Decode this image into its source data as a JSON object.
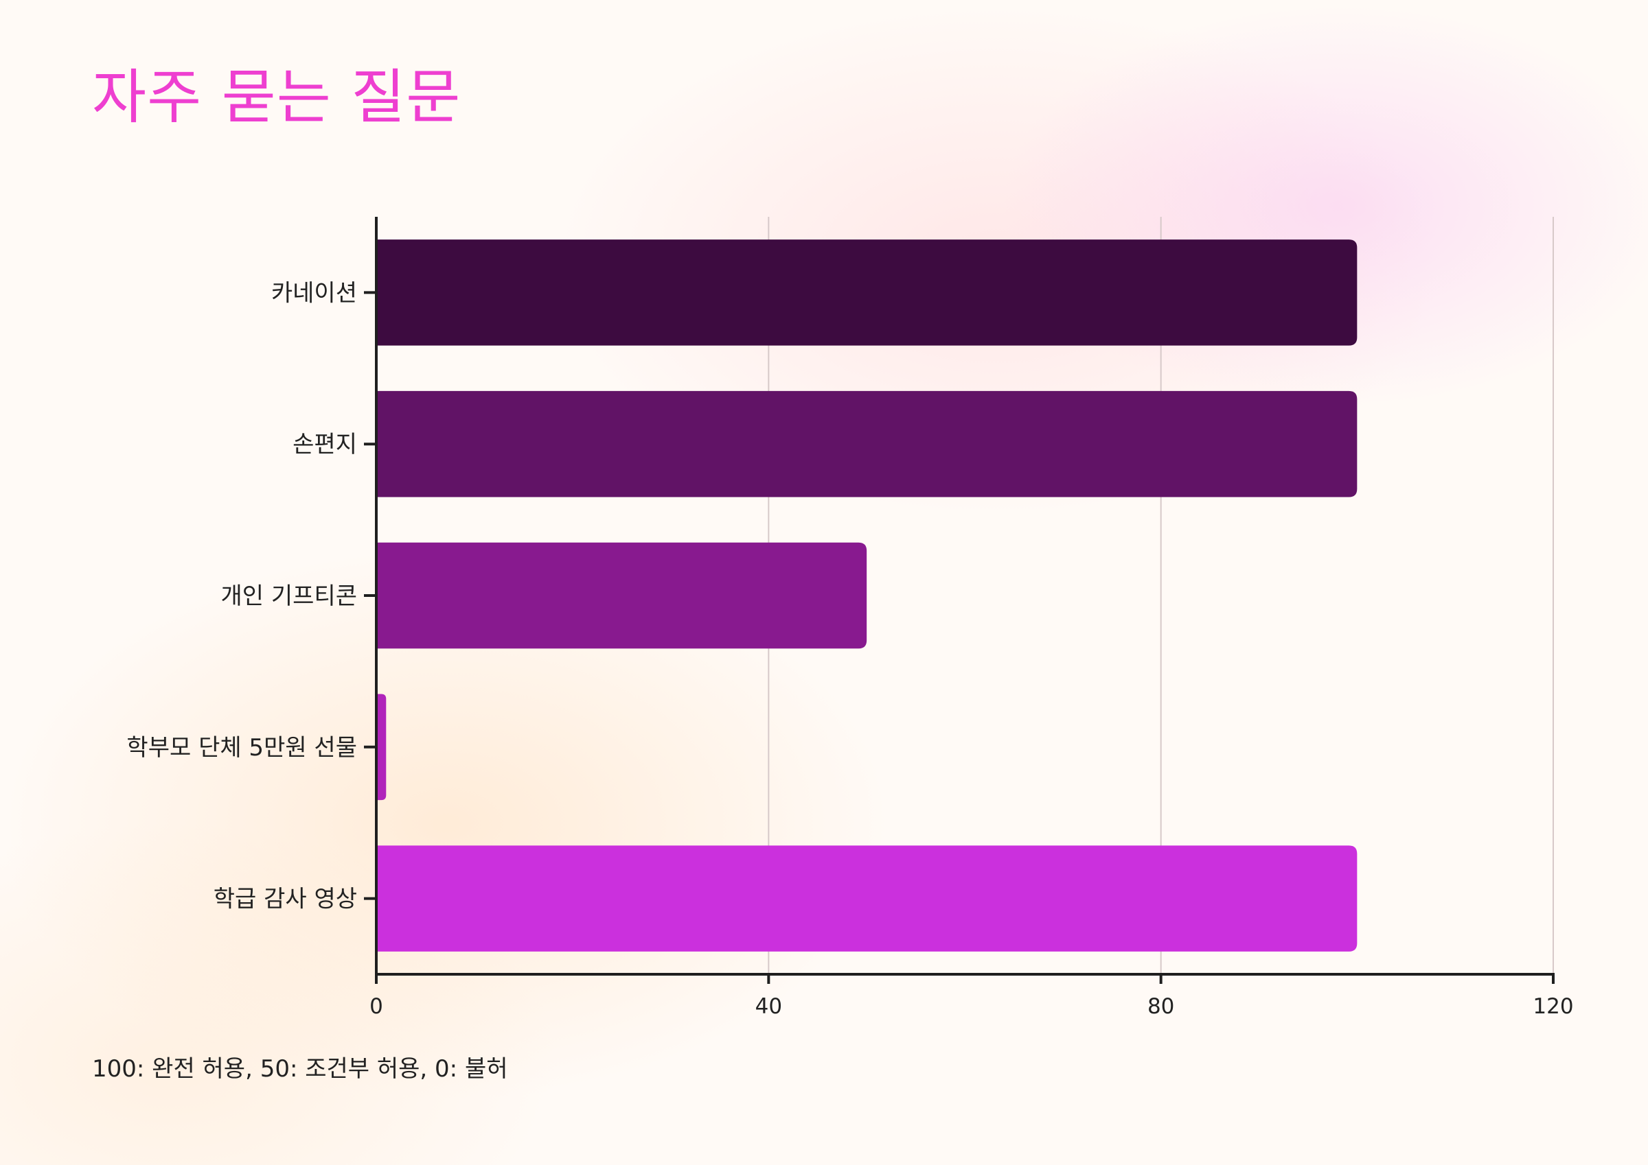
{
  "page": {
    "title": "자주 묻는 질문",
    "footnote": "100: 완전 허용, 50: 조건부 허용, 0: 불허"
  },
  "chart_data": {
    "type": "bar",
    "orientation": "horizontal",
    "categories": [
      "카네이션",
      "손편지",
      "개인 기프티콘",
      "학부모 단체 5만원 선물",
      "학급 감사 영상"
    ],
    "values": [
      100,
      100,
      50,
      1,
      100
    ],
    "colors": [
      "#3d0b40",
      "#611366",
      "#881a8f",
      "#b024ba",
      "#cb30dd"
    ],
    "xlim": [
      0,
      120
    ],
    "xticks": [
      0,
      40,
      80,
      120
    ],
    "grid": true,
    "title": "",
    "xlabel": "",
    "ylabel": ""
  }
}
